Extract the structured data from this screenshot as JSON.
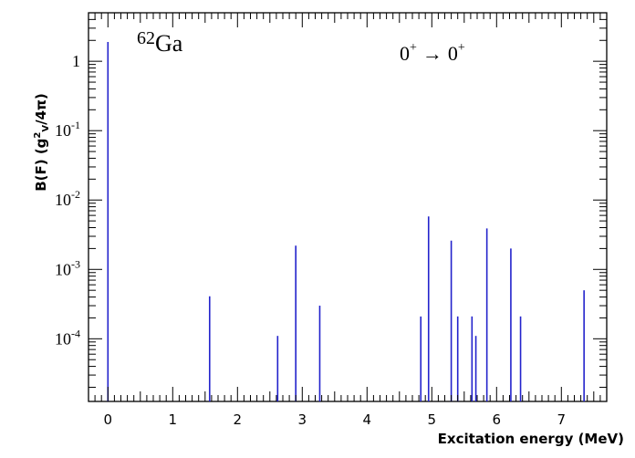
{
  "chart_data": {
    "type": "bar",
    "nucleus_mass": "62",
    "nucleus_symbol": "Ga",
    "transition": {
      "j_initial": "0",
      "j_final": "0",
      "parity": "+",
      "arrow": "→"
    },
    "xlabel": "Excitation energy (MeV)",
    "ylabel": {
      "pre": "B(F) (g",
      "sup": "2",
      "sub": "V",
      "post": "/4π)"
    },
    "xlim": [
      -0.3,
      7.7
    ],
    "ylim": [
      1.25e-05,
      5
    ],
    "yscale": "log",
    "x_ticks": [
      0,
      1,
      2,
      3,
      4,
      5,
      6,
      7
    ],
    "x_tick_labels": [
      "0",
      "1",
      "2",
      "3",
      "4",
      "5",
      "6",
      "7"
    ],
    "y_ticks": [
      {
        "value": 1,
        "base": "1",
        "exp": ""
      },
      {
        "value": 0.1,
        "base": "10",
        "exp": "-1"
      },
      {
        "value": 0.01,
        "base": "10",
        "exp": "-2"
      },
      {
        "value": 0.001,
        "base": "10",
        "exp": "-3"
      },
      {
        "value": 0.0001,
        "base": "10",
        "exp": "-4"
      }
    ],
    "bar_color": "#2323cc",
    "lines": [
      {
        "x": 0.0,
        "y": 1.9
      },
      {
        "x": 1.57,
        "y": 0.00041
      },
      {
        "x": 2.62,
        "y": 0.00011
      },
      {
        "x": 2.9,
        "y": 0.0022
      },
      {
        "x": 3.27,
        "y": 0.0003
      },
      {
        "x": 4.83,
        "y": 0.00021
      },
      {
        "x": 4.95,
        "y": 0.0058
      },
      {
        "x": 5.3,
        "y": 0.0026
      },
      {
        "x": 5.4,
        "y": 0.00021
      },
      {
        "x": 5.62,
        "y": 0.00021
      },
      {
        "x": 5.68,
        "y": 0.00011
      },
      {
        "x": 5.85,
        "y": 0.0039
      },
      {
        "x": 6.22,
        "y": 0.002
      },
      {
        "x": 6.37,
        "y": 0.00021
      },
      {
        "x": 7.35,
        "y": 0.0005
      }
    ]
  }
}
